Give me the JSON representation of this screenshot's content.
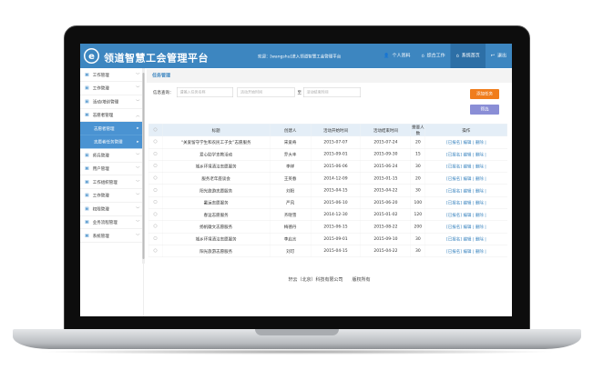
{
  "header": {
    "logo": "e",
    "title": "领道智慧工会管理平台",
    "welcome": "欢迎：[wangshu]进入领道智慧工会管理平台",
    "nav": [
      {
        "label": "个人资料",
        "icon": "user-icon"
      },
      {
        "label": "综合工作",
        "icon": "home-icon"
      },
      {
        "label": "系统首页",
        "icon": "home-icon",
        "active": true
      },
      {
        "label": "退出",
        "icon": "logout-icon"
      }
    ]
  },
  "sidebar": {
    "items": [
      "工作管理",
      "工作管理",
      "活动/培训管理",
      "志愿者管理"
    ],
    "sub_items": [
      "志愿者管理",
      "志愿者任务管理"
    ],
    "items_after": [
      "师兵管理",
      "用户管理",
      "工作组织管理",
      "工作管理",
      "权限管理",
      "业务流程管理",
      "系统管理"
    ]
  },
  "breadcrumb": "任务管理",
  "search": {
    "label": "信息查询：",
    "name_placeholder": "请输入任务名称",
    "start_placeholder": "活动开始时间",
    "to": "至",
    "end_placeholder": "活动结束时间"
  },
  "buttons": {
    "add": "添加任务",
    "filter": "筛选",
    "add_color": "#f07d1c",
    "filter_color": "#8a8ed6"
  },
  "table": {
    "columns": [
      "标题",
      "创建人",
      "活动开始时间",
      "活动结束时间",
      "需要人数",
      "操作"
    ],
    "rows": [
      [
        "“关爱留守学生和农民工子女”志愿服务",
        "宋爱奇",
        "2015-07-07",
        "2015-07-24",
        "20"
      ],
      [
        "爱心助学支教活动",
        "乔大丰",
        "2015-09-01",
        "2015-09-30",
        "15"
      ],
      [
        "城乡环境清洁志愿服务",
        "李祥",
        "2015-06-06",
        "2015-06-24",
        "30"
      ],
      [
        "服务老年座谈会",
        "王英春",
        "2014-12-09",
        "2015-01-15",
        "20"
      ],
      [
        "阳光旅游志愿服务",
        "刘阳",
        "2015-04-15",
        "2015-04-22",
        "30"
      ],
      [
        "暑运志愿服务",
        "严风",
        "2015-06-10",
        "2015-06-20",
        "100"
      ],
      [
        "春运志愿服务",
        "齐晓雪",
        "2014-12-30",
        "2015-01-02",
        "120"
      ],
      [
        "扬帆徽文志愿服务",
        "梅德丹",
        "2015-06-15",
        "2015-08-22",
        "200"
      ],
      [
        "城乡环境清洁志愿服务",
        "李启言",
        "2015-09-01",
        "2015-09-10",
        "30"
      ],
      [
        "阳光旅游志愿服务",
        "刘可",
        "2015-04-15",
        "2015-04-22",
        "30"
      ]
    ],
    "ops": {
      "signed": "[已报名]",
      "edit": "编辑",
      "delete": "删除"
    }
  },
  "footer": "轩云（北京）科技有限公司　　版权所有"
}
